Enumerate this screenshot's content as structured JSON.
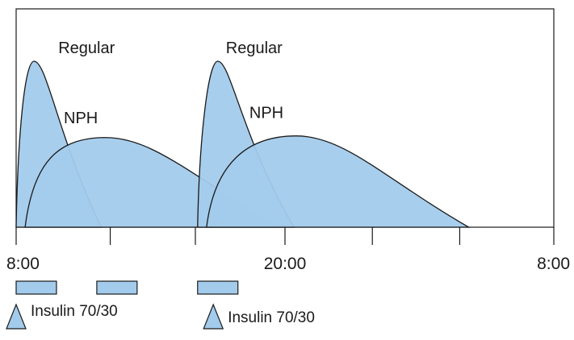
{
  "chart_data": {
    "type": "area",
    "title": "",
    "xlabel": "",
    "ylabel": "",
    "x_axis": {
      "unit": "hours",
      "range": [
        8,
        32
      ],
      "tick_labels": [
        {
          "value": 8,
          "label": "8:00"
        },
        {
          "value": 20,
          "label": "20:00"
        },
        {
          "value": 32,
          "label": "8:00"
        }
      ],
      "minor_ticks": [
        8,
        12.2,
        16,
        20,
        23.9,
        27.8,
        32
      ]
    },
    "series_style": {
      "fill": "#a3cbec",
      "stroke": "#1a1a1a"
    },
    "series": [
      {
        "name": "Regular",
        "kind": "regular",
        "start": 8.0,
        "peak_time": 8.8,
        "peak": 1.0,
        "end": 11.8
      },
      {
        "name": "NPH",
        "kind": "nph",
        "start": 8.4,
        "peak_time": 12.0,
        "peak": 0.54,
        "end": 19.8
      },
      {
        "name": "Regular",
        "kind": "regular",
        "start": 16.1,
        "peak_time": 17.0,
        "peak": 1.0,
        "end": 20.4
      },
      {
        "name": "NPH",
        "kind": "nph",
        "start": 16.5,
        "peak_time": 20.5,
        "peak": 0.55,
        "end": 28.2
      }
    ],
    "meal_bars": [
      {
        "start": 8.0,
        "end": 9.8
      },
      {
        "start": 11.6,
        "end": 13.4
      },
      {
        "start": 16.1,
        "end": 17.9
      }
    ],
    "injections": [
      {
        "time": 8.0,
        "label": "Insulin 70/30"
      },
      {
        "time": 16.8,
        "label": "Insulin 70/30"
      }
    ]
  }
}
